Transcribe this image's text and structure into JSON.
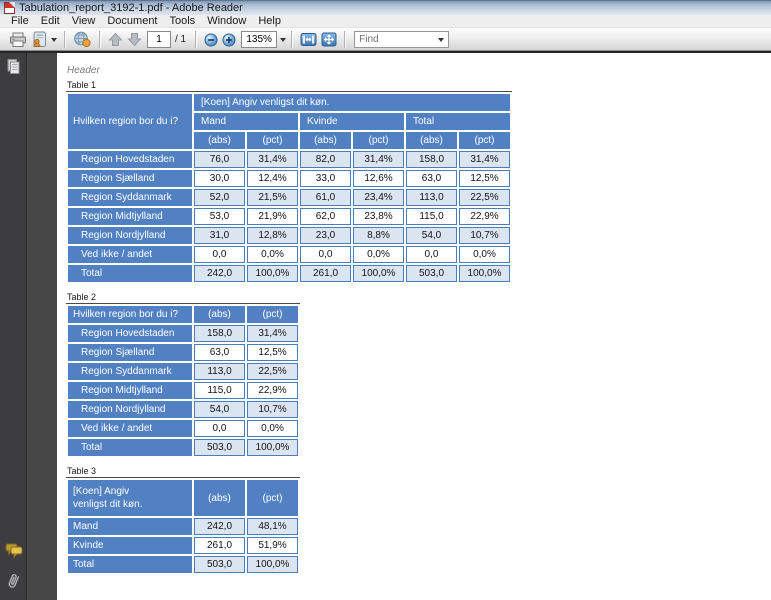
{
  "window": {
    "title": "Tabulation_report_3192-1.pdf - Adobe Reader"
  },
  "menu": {
    "items": [
      "File",
      "Edit",
      "View",
      "Document",
      "Tools",
      "Window",
      "Help"
    ]
  },
  "toolbar": {
    "page_number": "1",
    "page_count_label": "/ 1",
    "zoom_level": "135%",
    "find_placeholder": "Find",
    "icons": [
      "print-icon",
      "collaborate-icon",
      "acrobat-com-globe-icon",
      "previous-page-icon",
      "next-page-icon",
      "zoom-out-icon",
      "zoom-in-icon",
      "fit-width-icon",
      "full-screen-icon"
    ]
  },
  "sidebar": {
    "icons": [
      "page-thumbnails-icon",
      "comments-icon",
      "paperclip-icon"
    ]
  },
  "colors": {
    "table_header_blue": "#5181c2",
    "table_border_blue": "#4c7cbc",
    "table_band_light_blue": "#dbe5f1",
    "header_text_white": "#ffffff",
    "titlebar_blue_gray": "#b7c7da",
    "canvas_dark_gray": "#474747"
  },
  "document": {
    "header_text": "Header",
    "tables": [
      {
        "caption": "Table 1",
        "question_label": "Hvilken region bor du i?",
        "banner_label": "[Koen] Angiv venligst dit køn.",
        "groups": [
          "Mand",
          "Kvinde",
          "Total"
        ],
        "measure_headers": [
          "(abs)",
          "(pct)"
        ],
        "rows": [
          {
            "label": "Region Hovedstaden",
            "values": [
              "76,0",
              "31,4%",
              "82,0",
              "31,4%",
              "158,0",
              "31,4%"
            ]
          },
          {
            "label": "Region Sjælland",
            "values": [
              "30,0",
              "12,4%",
              "33,0",
              "12,6%",
              "63,0",
              "12,5%"
            ]
          },
          {
            "label": "Region Syddanmark",
            "values": [
              "52,0",
              "21,5%",
              "61,0",
              "23,4%",
              "113,0",
              "22,5%"
            ]
          },
          {
            "label": "Region Midtjylland",
            "values": [
              "53,0",
              "21,9%",
              "62,0",
              "23,8%",
              "115,0",
              "22,9%"
            ]
          },
          {
            "label": "Region Nordjylland",
            "values": [
              "31,0",
              "12,8%",
              "23,0",
              "8,8%",
              "54,0",
              "10,7%"
            ]
          },
          {
            "label": "Ved ikke / andet",
            "values": [
              "0,0",
              "0,0%",
              "0,0",
              "0,0%",
              "0,0",
              "0,0%"
            ]
          },
          {
            "label": "Total",
            "values": [
              "242,0",
              "100,0%",
              "261,0",
              "100,0%",
              "503,0",
              "100,0%"
            ]
          }
        ]
      },
      {
        "caption": "Table 2",
        "question_label": "Hvilken region bor du i?",
        "measure_headers": [
          "(abs)",
          "(pct)"
        ],
        "rows": [
          {
            "label": "Region Hovedstaden",
            "values": [
              "158,0",
              "31,4%"
            ]
          },
          {
            "label": "Region Sjælland",
            "values": [
              "63,0",
              "12,5%"
            ]
          },
          {
            "label": "Region Syddanmark",
            "values": [
              "113,0",
              "22,5%"
            ]
          },
          {
            "label": "Region Midtjylland",
            "values": [
              "115,0",
              "22,9%"
            ]
          },
          {
            "label": "Region Nordjylland",
            "values": [
              "54,0",
              "10,7%"
            ]
          },
          {
            "label": "Ved ikke / andet",
            "values": [
              "0,0",
              "0,0%"
            ]
          },
          {
            "label": "Total",
            "values": [
              "503,0",
              "100,0%"
            ]
          }
        ]
      },
      {
        "caption": "Table 3",
        "question_label": "[Koen] Angiv venligst dit køn.",
        "measure_headers": [
          "(abs)",
          "(pct)"
        ],
        "rows": [
          {
            "label": "Mand",
            "values": [
              "242,0",
              "48,1%"
            ]
          },
          {
            "label": "Kvinde",
            "values": [
              "261,0",
              "51,9%"
            ]
          },
          {
            "label": "Total",
            "values": [
              "503,0",
              "100,0%"
            ]
          }
        ]
      }
    ]
  }
}
